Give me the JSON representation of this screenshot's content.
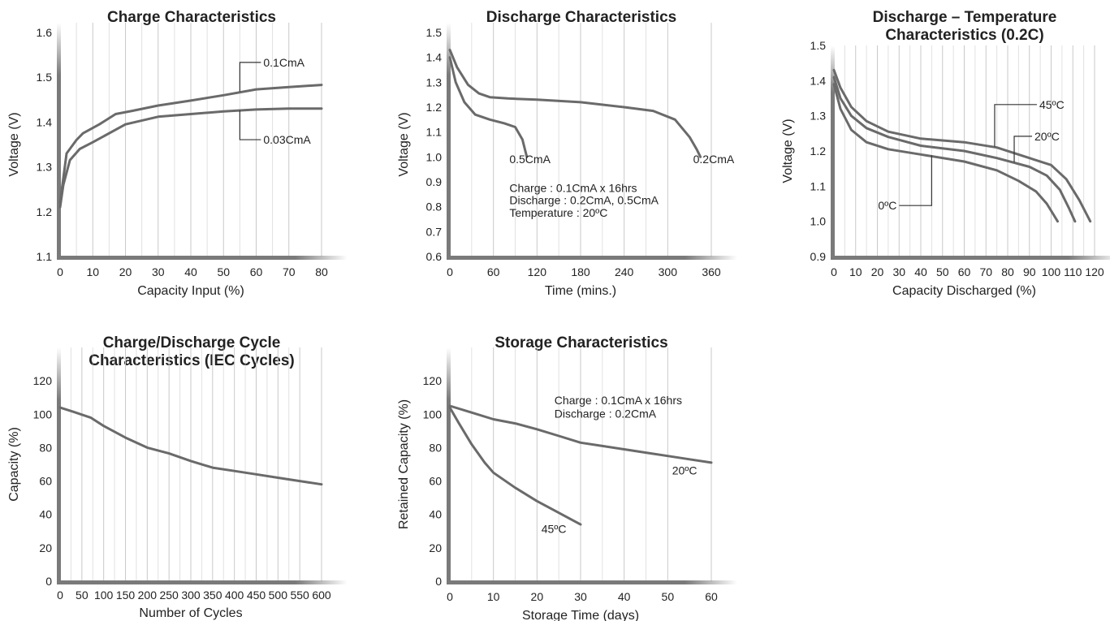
{
  "colors": {
    "series": "#6a6a6a",
    "grid": "#c9c9c9",
    "axis": "#7a7a7a",
    "text": "#222222"
  },
  "chart_data": [
    {
      "type": "line",
      "title_lines": [
        "Charge Characteristics"
      ],
      "xlabel": "Capacity Input (%)",
      "ylabel": "Voltage (V)",
      "xlim": [
        0,
        80
      ],
      "ylim": [
        1.1,
        1.6
      ],
      "xticks": [
        0,
        10,
        20,
        30,
        40,
        50,
        60,
        70,
        80
      ],
      "yticks": [
        1.1,
        1.2,
        1.3,
        1.4,
        1.5,
        1.6
      ],
      "xtick_labels": [
        "0",
        "10",
        "20",
        "30",
        "40",
        "50",
        "60",
        "70",
        "80"
      ],
      "ytick_labels": [
        "1.1",
        "1.2",
        "1.3",
        "1.4",
        "1.5",
        "1.6"
      ],
      "grid": true,
      "series": [
        {
          "name": "0.1CmA",
          "x": [
            0,
            2,
            5,
            7,
            12,
            17,
            22,
            30,
            40,
            50,
            60,
            70,
            80
          ],
          "y": [
            1.22,
            1.33,
            1.36,
            1.375,
            1.395,
            1.418,
            1.425,
            1.437,
            1.448,
            1.46,
            1.473,
            1.478,
            1.483
          ]
        },
        {
          "name": "0.03CmA",
          "x": [
            0,
            1,
            3,
            6,
            10,
            20,
            30,
            40,
            50,
            60,
            70,
            80
          ],
          "y": [
            1.21,
            1.26,
            1.315,
            1.34,
            1.355,
            1.395,
            1.412,
            1.418,
            1.424,
            1.428,
            1.43,
            1.43
          ]
        }
      ],
      "annotations": [
        {
          "text": "0.1CmA",
          "series": 0,
          "x": 55,
          "y": 1.468
        },
        {
          "text": "0.03CmA",
          "series": 1,
          "x": 55,
          "y": 1.426
        }
      ]
    },
    {
      "type": "line",
      "title_lines": [
        "Discharge Characteristics"
      ],
      "xlabel": "Time (mins.)",
      "ylabel": "Voltage (V)",
      "xlim": [
        0,
        360
      ],
      "ylim": [
        0.6,
        1.5
      ],
      "xticks": [
        0,
        60,
        120,
        180,
        240,
        300,
        360
      ],
      "yticks": [
        0.6,
        0.7,
        0.8,
        0.9,
        1.0,
        1.1,
        1.2,
        1.3,
        1.4,
        1.5
      ],
      "xtick_labels": [
        "0",
        "60",
        "120",
        "180",
        "240",
        "300",
        "360"
      ],
      "ytick_labels": [
        "0.6",
        "0.7",
        "0.8",
        "0.9",
        "1.0",
        "1.1",
        "1.2",
        "1.3",
        "1.4",
        "1.5"
      ],
      "grid": true,
      "series": [
        {
          "name": "0.2CmA",
          "x": [
            0,
            10,
            25,
            40,
            55,
            80,
            120,
            180,
            240,
            280,
            310,
            330,
            340,
            345
          ],
          "y": [
            1.43,
            1.36,
            1.29,
            1.255,
            1.24,
            1.235,
            1.23,
            1.22,
            1.2,
            1.185,
            1.15,
            1.08,
            1.03,
            1.0
          ]
        },
        {
          "name": "0.5CmA",
          "x": [
            0,
            8,
            20,
            35,
            55,
            75,
            90,
            100,
            106
          ],
          "y": [
            1.4,
            1.3,
            1.22,
            1.17,
            1.15,
            1.135,
            1.12,
            1.07,
            1.0
          ]
        }
      ],
      "annotations": [
        {
          "text": "0.5CmA",
          "x": 82,
          "y": 0.975
        },
        {
          "text": "0.2CmA",
          "x": 335,
          "y": 0.975
        },
        {
          "text": "Charge : 0.1CmA x 16hrs",
          "x": 82,
          "y": 0.86
        },
        {
          "text": "Discharge : 0.2CmA, 0.5CmA",
          "x": 82,
          "y": 0.81
        },
        {
          "text": "Temperature : 20ºC",
          "x": 82,
          "y": 0.76
        }
      ]
    },
    {
      "type": "line",
      "title_lines": [
        "Discharge – Temperature",
        "Characteristics (0.2C)"
      ],
      "xlabel": "Capacity Discharged (%)",
      "ylabel": "Voltage (V)",
      "xlim": [
        0,
        120
      ],
      "ylim": [
        0.9,
        1.5
      ],
      "xticks": [
        0,
        10,
        20,
        30,
        40,
        50,
        60,
        70,
        80,
        90,
        100,
        110,
        120
      ],
      "yticks": [
        0.9,
        1.0,
        1.1,
        1.2,
        1.3,
        1.4,
        1.5
      ],
      "xtick_labels": [
        "0",
        "10",
        "20",
        "30",
        "40",
        "50",
        "60",
        "70",
        "80",
        "90",
        "100",
        "110",
        "120"
      ],
      "ytick_labels": [
        "0.9",
        "1.0",
        "1.1",
        "1.2",
        "1.3",
        "1.4",
        "1.5"
      ],
      "grid": true,
      "series": [
        {
          "name": "45ºC",
          "x": [
            0,
            3,
            8,
            15,
            25,
            40,
            60,
            75,
            90,
            100,
            107,
            113,
            118
          ],
          "y": [
            1.43,
            1.38,
            1.325,
            1.285,
            1.255,
            1.235,
            1.225,
            1.21,
            1.18,
            1.16,
            1.12,
            1.06,
            1.0
          ]
        },
        {
          "name": "20ºC",
          "x": [
            0,
            3,
            8,
            15,
            25,
            40,
            60,
            75,
            90,
            98,
            104,
            108,
            111
          ],
          "y": [
            1.41,
            1.35,
            1.3,
            1.265,
            1.24,
            1.215,
            1.2,
            1.18,
            1.155,
            1.13,
            1.09,
            1.04,
            1.0
          ]
        },
        {
          "name": "0ºC",
          "x": [
            0,
            3,
            8,
            15,
            25,
            40,
            60,
            75,
            85,
            93,
            98,
            101,
            103
          ],
          "y": [
            1.39,
            1.32,
            1.26,
            1.225,
            1.205,
            1.19,
            1.17,
            1.145,
            1.115,
            1.085,
            1.05,
            1.02,
            1.0
          ]
        }
      ],
      "annotations": [
        {
          "text": "45ºC",
          "series": 0,
          "x": 74,
          "y": 1.212
        },
        {
          "text": "20ºC",
          "series": 1,
          "x": 83,
          "y": 1.168
        },
        {
          "text": "0ºC",
          "series": 2,
          "x": 45,
          "y": 1.188
        }
      ]
    },
    {
      "type": "line",
      "title_lines": [
        "Charge/Discharge Cycle",
        "Characteristics (IEC Cycles)"
      ],
      "xlabel": "Number of Cycles",
      "ylabel": "Capacity (%)",
      "xlim": [
        0,
        600
      ],
      "ylim": [
        0,
        140
      ],
      "xticks": [
        0,
        50,
        100,
        150,
        200,
        250,
        300,
        350,
        400,
        450,
        500,
        550,
        600
      ],
      "yticks": [
        0,
        20,
        40,
        60,
        80,
        100,
        120
      ],
      "xtick_labels": [
        "0",
        "50",
        "100",
        "150",
        "200",
        "250",
        "300",
        "350",
        "400",
        "450",
        "500",
        "550",
        "600"
      ],
      "ytick_labels": [
        "0",
        "20",
        "40",
        "60",
        "80",
        "100",
        "120"
      ],
      "grid": true,
      "series": [
        {
          "name": "",
          "x": [
            0,
            30,
            70,
            100,
            150,
            200,
            250,
            300,
            350,
            400,
            450,
            500,
            550,
            600
          ],
          "y": [
            104,
            101.5,
            98,
            93,
            86,
            80,
            76.5,
            72,
            68,
            66,
            64,
            62,
            60,
            58
          ]
        }
      ],
      "annotations": []
    },
    {
      "type": "line",
      "title_lines": [
        "Storage Characteristics"
      ],
      "xlabel": "Storage Time (days)",
      "ylabel": "Retained Capacity (%)",
      "xlim": [
        0,
        60
      ],
      "ylim": [
        0,
        140
      ],
      "xticks": [
        0,
        10,
        20,
        30,
        40,
        50,
        60
      ],
      "yticks": [
        0,
        20,
        40,
        60,
        80,
        100,
        120
      ],
      "xtick_labels": [
        "0",
        "10",
        "20",
        "30",
        "40",
        "50",
        "60"
      ],
      "ytick_labels": [
        "0",
        "20",
        "40",
        "60",
        "80",
        "100",
        "120"
      ],
      "grid": true,
      "series": [
        {
          "name": "20ºC",
          "x": [
            0,
            5,
            10,
            15,
            20,
            25,
            30,
            35,
            40,
            45,
            50,
            55,
            60
          ],
          "y": [
            105,
            101,
            97,
            94.5,
            91,
            87,
            83,
            81,
            79,
            77,
            75,
            73,
            71
          ]
        },
        {
          "name": "45ºC",
          "x": [
            0,
            2,
            5,
            8,
            10,
            15,
            20,
            25,
            30
          ],
          "y": [
            104,
            95,
            82,
            71,
            65,
            56,
            48,
            41,
            34
          ]
        }
      ],
      "annotations": [
        {
          "text": "Charge : 0.1CmA x 16hrs",
          "x": 24,
          "y": 106
        },
        {
          "text": "Discharge : 0.2CmA",
          "x": 24,
          "y": 98
        },
        {
          "text": "20ºC",
          "x": 51,
          "y": 64
        },
        {
          "text": "45ºC",
          "x": 21,
          "y": 29
        }
      ]
    }
  ]
}
